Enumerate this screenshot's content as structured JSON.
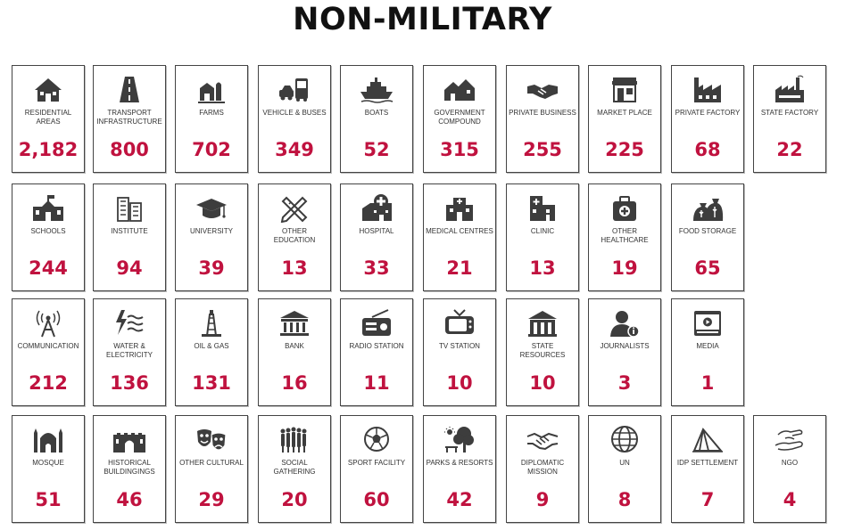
{
  "title": "NON-MILITARY",
  "accent_color": "#c0123f",
  "rows": [
    [
      {
        "label": "RESIDENTIAL AREAS",
        "value": "2,182",
        "icon": "house-icon"
      },
      {
        "label": "TRANSPORT INFRASTRUCTURE",
        "value": "800",
        "icon": "road-icon"
      },
      {
        "label": "FARMS",
        "value": "702",
        "icon": "farm-icon"
      },
      {
        "label": "VEHICLE & BUSES",
        "value": "349",
        "icon": "car-bus-icon"
      },
      {
        "label": "BOATS",
        "value": "52",
        "icon": "ship-icon"
      },
      {
        "label": "GOVERNMENT COMPOUND",
        "value": "315",
        "icon": "compound-icon"
      },
      {
        "label": "PRIVATE BUSINESS",
        "value": "255",
        "icon": "handshake-icon"
      },
      {
        "label": "MARKET PLACE",
        "value": "225",
        "icon": "shop-icon"
      },
      {
        "label": "PRIVATE FACTORY",
        "value": "68",
        "icon": "factory-icon"
      },
      {
        "label": "STATE FACTORY",
        "value": "22",
        "icon": "state-factory-icon"
      }
    ],
    [
      {
        "label": "SCHOOLS",
        "value": "244",
        "icon": "school-icon"
      },
      {
        "label": "INSTITUTE",
        "value": "94",
        "icon": "institute-icon"
      },
      {
        "label": "UNIVERSITY",
        "value": "39",
        "icon": "graduation-cap-icon"
      },
      {
        "label": "OTHER EDUCATION",
        "value": "13",
        "icon": "pencil-ruler-icon"
      },
      {
        "label": "HOSPITAL",
        "value": "33",
        "icon": "hospital-icon"
      },
      {
        "label": "MEDICAL CENTRES",
        "value": "21",
        "icon": "medical-centre-icon"
      },
      {
        "label": "CLINIC",
        "value": "13",
        "icon": "clinic-icon"
      },
      {
        "label": "OTHER HEALTHCARE",
        "value": "19",
        "icon": "first-aid-kit-icon"
      },
      {
        "label": "FOOD STORAGE",
        "value": "65",
        "icon": "grain-sacks-icon"
      }
    ],
    [
      {
        "label": "COMMUNICATION",
        "value": "212",
        "icon": "antenna-icon"
      },
      {
        "label": "WATER & ELECTRICITY",
        "value": "136",
        "icon": "lightning-water-icon"
      },
      {
        "label": "OIL & GAS",
        "value": "131",
        "icon": "oil-rig-icon"
      },
      {
        "label": "BANK",
        "value": "16",
        "icon": "bank-icon"
      },
      {
        "label": "RADIO STATION",
        "value": "11",
        "icon": "radio-icon"
      },
      {
        "label": "TV STATION",
        "value": "10",
        "icon": "tv-icon"
      },
      {
        "label": "STATE RESOURCES",
        "value": "10",
        "icon": "state-building-icon"
      },
      {
        "label": "JOURNALISTS",
        "value": "3",
        "icon": "journalist-icon"
      },
      {
        "label": "MEDIA",
        "value": "1",
        "icon": "media-player-icon"
      }
    ],
    [
      {
        "label": "MOSQUE",
        "value": "51",
        "icon": "mosque-icon"
      },
      {
        "label": "HISTORICAL BUILDINGINGS",
        "value": "46",
        "icon": "historic-wall-icon"
      },
      {
        "label": "OTHER CULTURAL",
        "value": "29",
        "icon": "theatre-masks-icon"
      },
      {
        "label": "SOCIAL GATHERING",
        "value": "20",
        "icon": "crowd-icon"
      },
      {
        "label": "SPORT FACILITY",
        "value": "60",
        "icon": "football-icon"
      },
      {
        "label": "PARKS & RESORTS",
        "value": "42",
        "icon": "park-icon"
      },
      {
        "label": "DIPLOMATIC MISSION",
        "value": "9",
        "icon": "diplomatic-handshake-icon"
      },
      {
        "label": "UN",
        "value": "8",
        "icon": "globe-icon"
      },
      {
        "label": "IDP SETTLEMENT",
        "value": "7",
        "icon": "tent-icon"
      },
      {
        "label": "NGO",
        "value": "4",
        "icon": "helping-hands-icon"
      }
    ]
  ]
}
